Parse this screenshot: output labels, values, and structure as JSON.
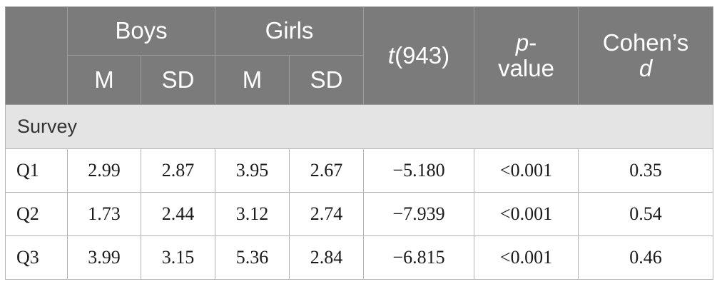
{
  "table": {
    "header": {
      "blank": "",
      "boys": "Boys",
      "girls": "Girls",
      "t_italic": "t",
      "t_rest": "(943)",
      "p_italic": "p",
      "p_rest": "-",
      "p_second_line": "value",
      "cohen_first": "Cohen’s",
      "cohen_d": "d",
      "sub": {
        "boys_m": "M",
        "boys_sd": "SD",
        "girls_m": "M",
        "girls_sd": "SD"
      }
    },
    "section_label": "Survey",
    "rows": [
      {
        "label": "Q1",
        "boys_m": "2.99",
        "boys_sd": "2.87",
        "girls_m": "3.95",
        "girls_sd": "2.67",
        "t": "−5.180",
        "p": "<0.001",
        "d": "0.35"
      },
      {
        "label": "Q2",
        "boys_m": "1.73",
        "boys_sd": "2.44",
        "girls_m": "3.12",
        "girls_sd": "2.74",
        "t": "−7.939",
        "p": "<0.001",
        "d": "0.54"
      },
      {
        "label": "Q3",
        "boys_m": "3.99",
        "boys_sd": "3.15",
        "girls_m": "5.36",
        "girls_sd": "2.84",
        "t": "−6.815",
        "p": "<0.001",
        "d": "0.46"
      }
    ]
  }
}
